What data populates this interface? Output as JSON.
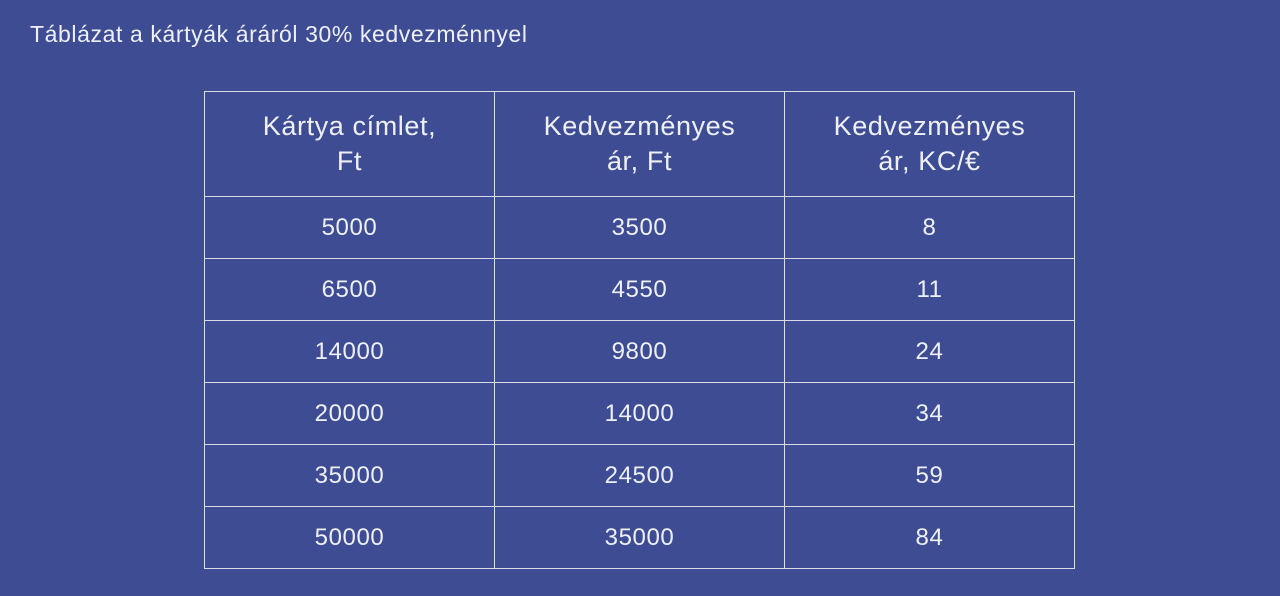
{
  "page": {
    "title": "Táblázat a kártyák áráról 30% kedvezménnyel"
  },
  "colors": {
    "bg": "#3e4c94",
    "border": "#d9dbe8",
    "text": "#eef0f6"
  },
  "table": {
    "header_lines": [
      [
        "Kártya címlet,",
        "Ft"
      ],
      [
        "Kedvezményes",
        "ár, Ft"
      ],
      [
        "Kedvezményes",
        "ár, KC/€"
      ]
    ]
  },
  "chart_data": {
    "type": "table",
    "title": "Táblázat a kártyák áráról 30% kedvezménnyel",
    "columns": [
      "Kártya címlet, Ft",
      "Kedvezményes ár, Ft",
      "Kedvezményes ár, KC/€"
    ],
    "rows": [
      [
        "5000",
        "3500",
        "8"
      ],
      [
        "6500",
        "4550",
        "11"
      ],
      [
        "14000",
        "9800",
        "24"
      ],
      [
        "20000",
        "14000",
        "34"
      ],
      [
        "35000",
        "24500",
        "59"
      ],
      [
        "50000",
        "35000",
        "84"
      ]
    ]
  }
}
